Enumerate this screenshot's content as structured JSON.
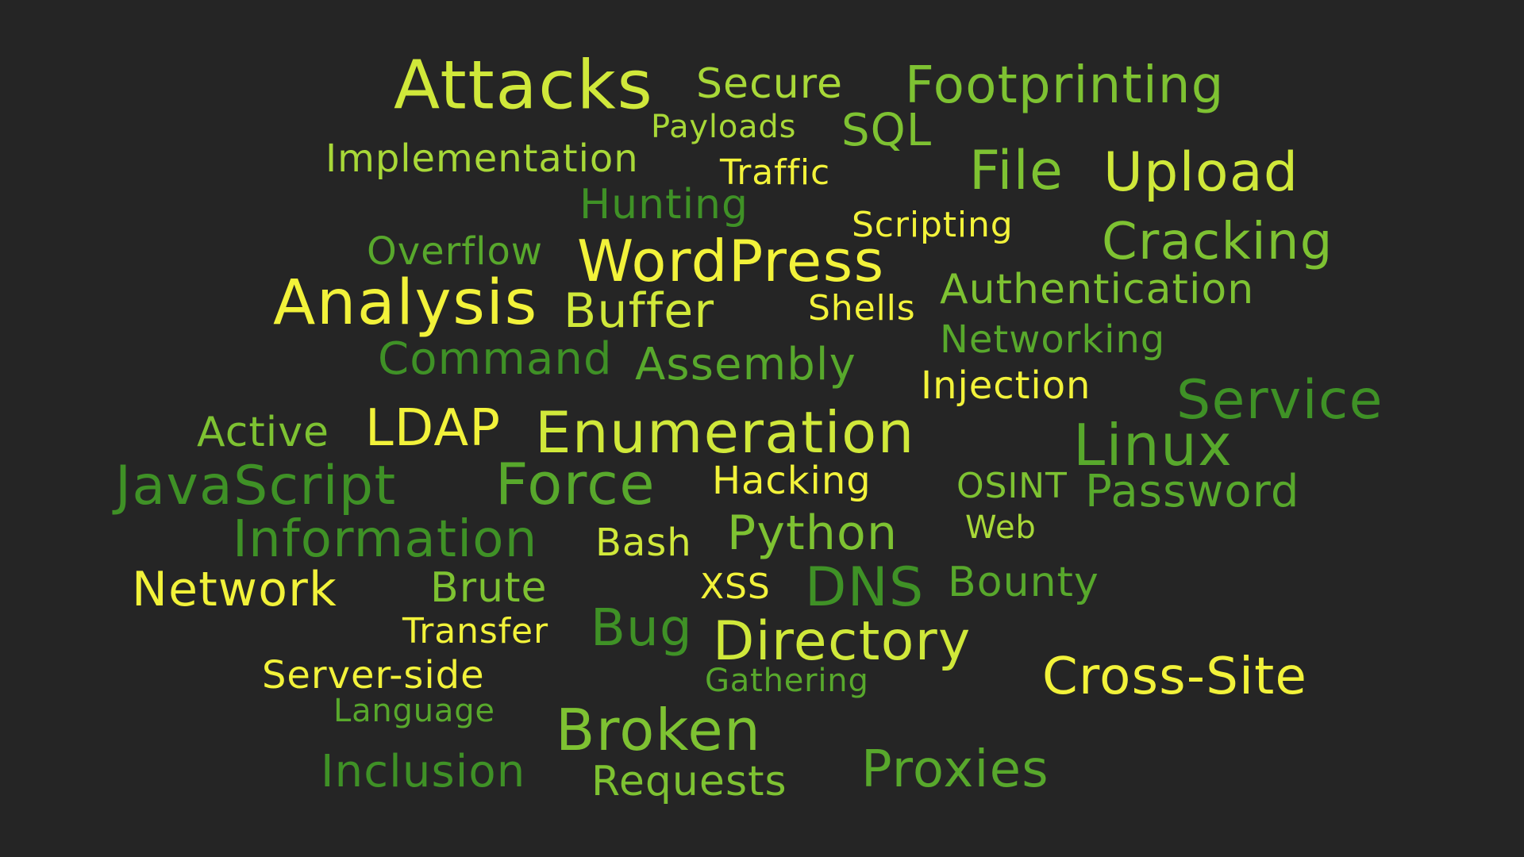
{
  "words": {
    "attacks": {
      "text": "Attacks",
      "color": "#d0e83a"
    },
    "secure": {
      "text": "Secure",
      "color": "#a8d838"
    },
    "footprinting": {
      "text": "Footprinting",
      "color": "#7ec232"
    },
    "payloads": {
      "text": "Payloads",
      "color": "#a8d838"
    },
    "sql": {
      "text": "SQL",
      "color": "#7ec232"
    },
    "implementation": {
      "text": "Implementation",
      "color": "#a8d838"
    },
    "traffic": {
      "text": "Traffic",
      "color": "#f2f23a"
    },
    "file": {
      "text": "File",
      "color": "#7ec232"
    },
    "upload": {
      "text": "Upload",
      "color": "#d0e83a"
    },
    "hunting": {
      "text": "Hunting",
      "color": "#3f9126"
    },
    "scripting": {
      "text": "Scripting",
      "color": "#f2f23a"
    },
    "overflow": {
      "text": "Overflow",
      "color": "#58a82c"
    },
    "wordpress": {
      "text": "WordPress",
      "color": "#f2f23a"
    },
    "cracking": {
      "text": "Cracking",
      "color": "#7ec232"
    },
    "analysis": {
      "text": "Analysis",
      "color": "#f2f23a"
    },
    "buffer": {
      "text": "Buffer",
      "color": "#d0e83a"
    },
    "shells": {
      "text": "Shells",
      "color": "#f2f23a"
    },
    "authentication": {
      "text": "Authentication",
      "color": "#7ec232"
    },
    "networking": {
      "text": "Networking",
      "color": "#58a82c"
    },
    "command": {
      "text": "Command",
      "color": "#3f9126"
    },
    "assembly": {
      "text": "Assembly",
      "color": "#58a82c"
    },
    "injection": {
      "text": "Injection",
      "color": "#f2f23a"
    },
    "service": {
      "text": "Service",
      "color": "#3f9126"
    },
    "active": {
      "text": "Active",
      "color": "#7ec232"
    },
    "ldap": {
      "text": "LDAP",
      "color": "#f2f23a"
    },
    "enumeration": {
      "text": "Enumeration",
      "color": "#d0e83a"
    },
    "linux": {
      "text": "Linux",
      "color": "#58a82c"
    },
    "javascript": {
      "text": "JavaScript",
      "color": "#3f9126"
    },
    "force": {
      "text": "Force",
      "color": "#58a82c"
    },
    "hacking": {
      "text": "Hacking",
      "color": "#f2f23a"
    },
    "osint": {
      "text": "OSINT",
      "color": "#7ec232"
    },
    "password": {
      "text": "Password",
      "color": "#58a82c"
    },
    "information": {
      "text": "Information",
      "color": "#3f9126"
    },
    "bash": {
      "text": "Bash",
      "color": "#d0e83a"
    },
    "python": {
      "text": "Python",
      "color": "#7ec232"
    },
    "web": {
      "text": "Web",
      "color": "#a8d838"
    },
    "network": {
      "text": "Network",
      "color": "#f2f23a"
    },
    "brute": {
      "text": "Brute",
      "color": "#7ec232"
    },
    "xss": {
      "text": "XSS",
      "color": "#f2f23a"
    },
    "dns": {
      "text": "DNS",
      "color": "#3f9126"
    },
    "bounty": {
      "text": "Bounty",
      "color": "#58a82c"
    },
    "transfer": {
      "text": "Transfer",
      "color": "#f2f23a"
    },
    "bug": {
      "text": "Bug",
      "color": "#3f9126"
    },
    "directory": {
      "text": "Directory",
      "color": "#d0e83a"
    },
    "server_side": {
      "text": "Server-side",
      "color": "#f2f23a"
    },
    "gathering": {
      "text": "Gathering",
      "color": "#58a82c"
    },
    "cross_site": {
      "text": "Cross-Site",
      "color": "#f2f23a"
    },
    "language": {
      "text": "Language",
      "color": "#58a82c"
    },
    "broken": {
      "text": "Broken",
      "color": "#7ec232"
    },
    "inclusion": {
      "text": "Inclusion",
      "color": "#3f9126"
    },
    "requests": {
      "text": "Requests",
      "color": "#7ec232"
    },
    "proxies": {
      "text": "Proxies",
      "color": "#58a82c"
    }
  }
}
